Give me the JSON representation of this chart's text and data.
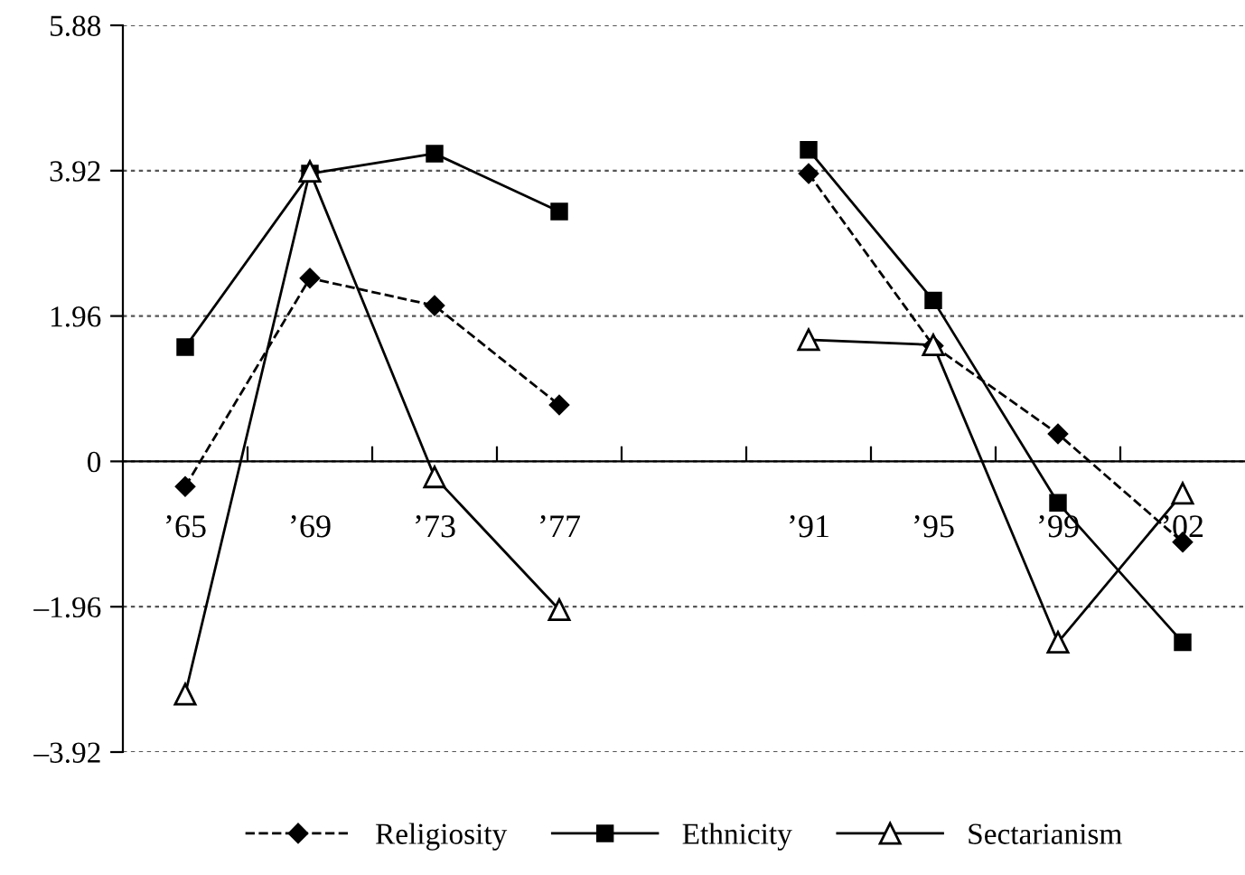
{
  "chart_data": {
    "type": "line",
    "categories": [
      "’65",
      "’69",
      "’73",
      "’77",
      null,
      "’91",
      "’95",
      "’99",
      "’02"
    ],
    "series": [
      {
        "name": "Religiosity",
        "color": "#000000",
        "marker": "diamond",
        "line_style": "dashed",
        "values": [
          -0.34,
          2.47,
          2.1,
          0.76,
          null,
          3.88,
          1.56,
          0.37,
          -1.09
        ]
      },
      {
        "name": "Ethnicity",
        "color": "#000000",
        "marker": "square",
        "line_style": "solid",
        "values": [
          1.54,
          3.88,
          4.15,
          3.37,
          null,
          4.2,
          2.17,
          -0.56,
          -2.44
        ]
      },
      {
        "name": "Sectarianism",
        "color": "#000000",
        "marker": "triangle",
        "line_style": "solid",
        "values": [
          -3.14,
          3.91,
          -0.21,
          -2.0,
          null,
          1.64,
          1.57,
          -2.44,
          -0.43
        ]
      }
    ],
    "ylim": [
      -3.92,
      5.88
    ],
    "yticks": [
      {
        "value": -3.92,
        "label": "–3.92"
      },
      {
        "value": -1.96,
        "label": "–1.96"
      },
      0,
      1.96,
      3.92,
      5.88
    ],
    "grid": "y",
    "legend": "bottom"
  }
}
